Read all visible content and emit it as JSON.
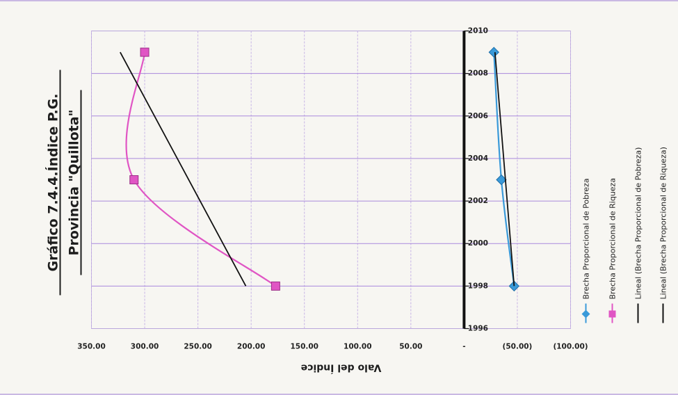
{
  "chart_data": {
    "type": "line",
    "title": "Gráfico 7.4.4.Índice P.G.",
    "subtitle": "Provincia \"Quillota\"",
    "xlabel": "",
    "ylabel": "Valo del Índice",
    "xlim": [
      1996,
      2010
    ],
    "ylim": [
      -100,
      350
    ],
    "x_ticks": [
      "1996",
      "1998",
      "2000",
      "2002",
      "2004",
      "2006",
      "2008",
      "2010"
    ],
    "y_ticks": [
      {
        "value": 350,
        "label": "350.00"
      },
      {
        "value": 300,
        "label": "300.00"
      },
      {
        "value": 250,
        "label": "250.00"
      },
      {
        "value": 200,
        "label": "200.00"
      },
      {
        "value": 150,
        "label": "150.00"
      },
      {
        "value": 100,
        "label": "100.00"
      },
      {
        "value": 50,
        "label": "50.00"
      },
      {
        "value": 0,
        "label": "-"
      },
      {
        "value": -50,
        "label": "(50.00)"
      },
      {
        "value": -100,
        "label": "(100.00)"
      }
    ],
    "grid": true,
    "legend_position": "bottom",
    "series": [
      {
        "name": "Brecha Proporcional de Pobreza",
        "color": "#3a9ad9",
        "marker": "diamond",
        "smooth": true,
        "x": [
          1998,
          2003,
          2009
        ],
        "y": [
          -47,
          -35,
          -28
        ]
      },
      {
        "name": "Brecha Proporcional de Riqueza",
        "color": "#e055c4",
        "marker": "square",
        "smooth": true,
        "x": [
          1998,
          2003,
          2009
        ],
        "y": [
          177,
          310,
          300
        ]
      },
      {
        "name": "Lineal (Brecha Proporcional de Pobreza)",
        "color": "#111111",
        "marker": "none",
        "smooth": false,
        "x": [
          1998,
          2009
        ],
        "y": [
          -47,
          -29
        ]
      },
      {
        "name": "Lineal (Brecha Proporcional de Riqueza)",
        "color": "#111111",
        "marker": "none",
        "smooth": false,
        "x": [
          1998,
          2009
        ],
        "y": [
          205,
          323
        ]
      }
    ]
  }
}
